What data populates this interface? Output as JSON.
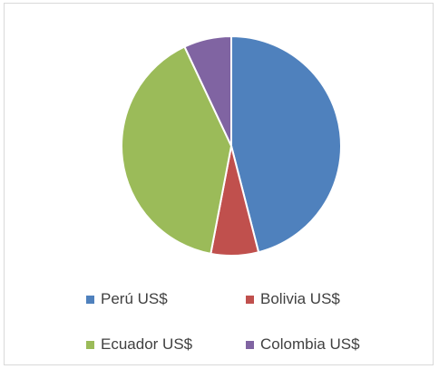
{
  "chart_data": {
    "type": "pie",
    "title": "",
    "categories": [
      "Perú US$",
      "Bolivia US$",
      "Ecuador US$",
      "Colombia US$"
    ],
    "values": [
      46,
      7,
      40,
      7
    ],
    "colors": [
      "#4f81bd",
      "#c0504d",
      "#9bbb59",
      "#8064a2"
    ],
    "start_angle_deg": 0,
    "direction": "clockwise",
    "legend_position": "bottom"
  }
}
